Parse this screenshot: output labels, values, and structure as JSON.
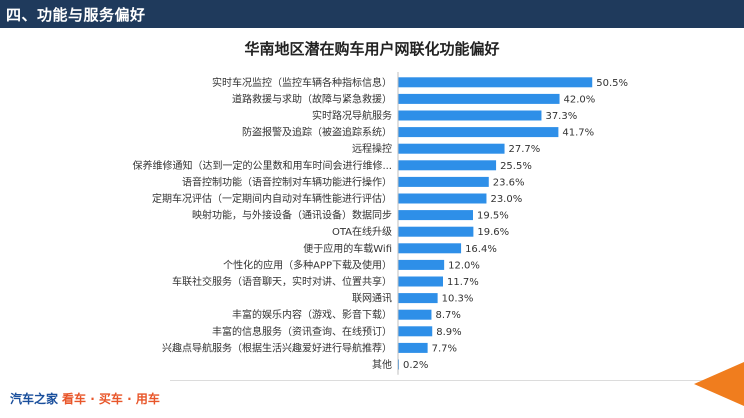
{
  "header": {
    "title": "四、功能与服务偏好"
  },
  "chart_data": {
    "type": "bar",
    "orientation": "horizontal",
    "title": "华南地区潜在购车用户网联化功能偏好",
    "categories": [
      "实时车况监控（监控车辆各种指标信息）",
      "道路救援与求助（故障与紧急救援）",
      "实时路况导航服务",
      "防盗报警及追踪（被盗追踪系统）",
      "远程操控",
      "保养维修通知（达到一定的公里数和用车时间会进行维修...",
      "语音控制功能（语音控制对车辆功能进行操作）",
      "定期车况评估（一定期间内自动对车辆性能进行评估）",
      "映射功能，与外接设备（通讯设备）数据同步",
      "OTA在线升级",
      "便于应用的车载Wifi",
      "个性化的应用（多种APP下载及使用）",
      "车联社交服务（语音聊天，实时对讲、位置共享）",
      "联网通讯",
      "丰富的娱乐内容（游戏、影音下载）",
      "丰富的信息服务（资讯查询、在线预订）",
      "兴趣点导航服务（根据生活兴趣爱好进行导航推荐）",
      "其他"
    ],
    "values": [
      50.5,
      42.0,
      37.3,
      41.7,
      27.7,
      25.5,
      23.6,
      23.0,
      19.5,
      19.6,
      16.4,
      12.0,
      11.7,
      10.3,
      8.7,
      8.9,
      7.7,
      0.2
    ],
    "value_labels": [
      "50.5%",
      "42.0%",
      "37.3%",
      "41.7%",
      "27.7%",
      "25.5%",
      "23.6%",
      "23.0%",
      "19.5%",
      "19.6%",
      "16.4%",
      "12.0%",
      "11.7%",
      "10.3%",
      "8.7%",
      "8.9%",
      "7.7%",
      "0.2%"
    ],
    "unit": "%",
    "xlim": [
      0,
      52
    ],
    "grid": false,
    "legend": "none",
    "bar_color": "#2e8fe8"
  },
  "footer": {
    "brand": "汽车之家",
    "slogan": "看车 · 买车 · 用车"
  },
  "colors": {
    "header_bg": "#1f3a5c",
    "accent": "#f07d1e"
  }
}
